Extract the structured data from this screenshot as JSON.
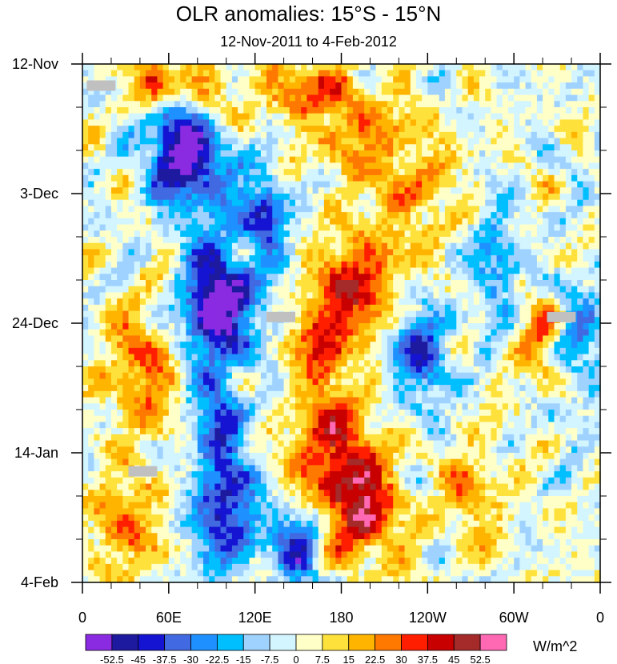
{
  "chart_data": {
    "type": "heatmap",
    "title": "OLR anomalies: 15°S - 15°N",
    "subtitle": "12-Nov-2011 to 4-Feb-2012",
    "x_ticks": [
      "0",
      "60E",
      "120E",
      "180",
      "120W",
      "60W",
      "0"
    ],
    "x_range_deg_east": [
      0,
      360
    ],
    "y_ticks": [
      "12-Nov",
      "3-Dec",
      "24-Dec",
      "14-Jan",
      "4-Feb"
    ],
    "y_range_days": [
      0,
      84
    ],
    "units": "W/m^2",
    "colorbar": {
      "levels": [
        "-52.5",
        "-45",
        "-37.5",
        "-30",
        "-22.5",
        "-15",
        "-7.5",
        "0",
        "7.5",
        "15",
        "22.5",
        "30",
        "37.5",
        "45",
        "52.5"
      ],
      "colors": [
        "#8a2be2",
        "#1e1aa0",
        "#1414d2",
        "#4169e1",
        "#1e90ff",
        "#00bfff",
        "#a0d2ff",
        "#d2f5ff",
        "#ffffc8",
        "#ffe13c",
        "#ffb400",
        "#ff7800",
        "#ff1e00",
        "#c80000",
        "#a52a2a",
        "#ff69b4"
      ]
    },
    "anomaly_features": [
      {
        "lon": 68,
        "day": 12,
        "value": -50,
        "width": 22,
        "height": 7
      },
      {
        "lon": 82,
        "day": 18,
        "value": -30,
        "width": 30,
        "height": 9
      },
      {
        "lon": 128,
        "day": 24,
        "value": -40,
        "width": 14,
        "height": 5
      },
      {
        "lon": 90,
        "day": 40,
        "value": -52,
        "width": 20,
        "height": 8
      },
      {
        "lon": 110,
        "day": 36,
        "value": -25,
        "width": 28,
        "height": 10
      },
      {
        "lon": 95,
        "day": 58,
        "value": -35,
        "width": 18,
        "height": 8
      },
      {
        "lon": 100,
        "day": 73,
        "value": -45,
        "width": 22,
        "height": 9
      },
      {
        "lon": 150,
        "day": 78,
        "value": -40,
        "width": 18,
        "height": 6
      },
      {
        "lon": 235,
        "day": 47,
        "value": -38,
        "width": 20,
        "height": 8
      },
      {
        "lon": 288,
        "day": 32,
        "value": -28,
        "width": 16,
        "height": 8
      },
      {
        "lon": 345,
        "day": 45,
        "value": -22,
        "width": 20,
        "height": 12
      },
      {
        "lon": 190,
        "day": 36,
        "value": 40,
        "width": 28,
        "height": 8
      },
      {
        "lon": 165,
        "day": 45,
        "value": 35,
        "width": 18,
        "height": 6
      },
      {
        "lon": 175,
        "day": 62,
        "value": 38,
        "width": 30,
        "height": 10
      },
      {
        "lon": 195,
        "day": 73,
        "value": 42,
        "width": 26,
        "height": 8
      },
      {
        "lon": 50,
        "day": 3,
        "value": 35,
        "width": 16,
        "height": 5
      },
      {
        "lon": 85,
        "day": 6,
        "value": 30,
        "width": 20,
        "height": 6
      },
      {
        "lon": 150,
        "day": 4,
        "value": 30,
        "width": 22,
        "height": 5
      },
      {
        "lon": 190,
        "day": 10,
        "value": 25,
        "width": 28,
        "height": 8
      },
      {
        "lon": 40,
        "day": 50,
        "value": 28,
        "width": 24,
        "height": 10
      },
      {
        "lon": 30,
        "day": 75,
        "value": 28,
        "width": 22,
        "height": 8
      },
      {
        "lon": 320,
        "day": 45,
        "value": 25,
        "width": 16,
        "height": 8
      },
      {
        "lon": 230,
        "day": 20,
        "value": 20,
        "width": 30,
        "height": 10
      },
      {
        "lon": 270,
        "day": 70,
        "value": 22,
        "width": 20,
        "height": 8
      }
    ],
    "missing_data_patches": [
      {
        "lon": 13,
        "day": 3.5
      },
      {
        "lon": 138,
        "day": 41
      },
      {
        "lon": 333,
        "day": 41
      },
      {
        "lon": 42,
        "day": 66
      }
    ]
  }
}
